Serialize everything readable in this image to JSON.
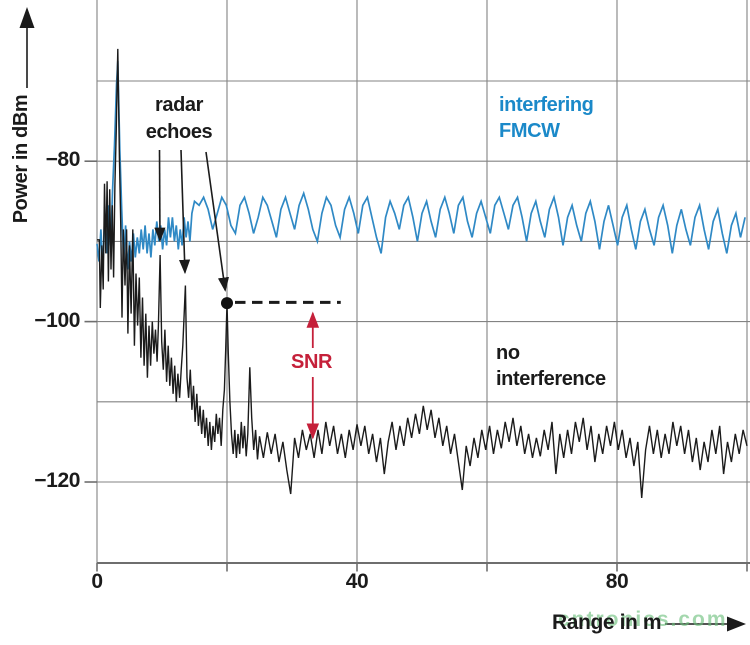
{
  "figure": {
    "watermark": "cntronics.com",
    "colors": {
      "blue_line": "#2f89c5",
      "blue_text": "#1b89c9",
      "red": "#c5203a",
      "grid": "#838383",
      "axis": "#6e6e6e",
      "black": "#1b1b1b",
      "watermark_green": "rgba(106,191,122,0.62)"
    }
  },
  "chart_data": {
    "type": "line",
    "title": "",
    "xlabel": "Range in m",
    "ylabel": "Power in dBm",
    "xlim": [
      0,
      100
    ],
    "ylim": [
      -130.1,
      -59.9
    ],
    "grid": true,
    "x_gridlines": [
      0,
      20,
      40,
      60,
      80,
      100
    ],
    "y_gridlines": [
      -70,
      -80,
      -90,
      -100,
      -110,
      -120
    ],
    "x_ticks": [
      {
        "v": 0,
        "label": "0"
      },
      {
        "v": 20,
        "label": ""
      },
      {
        "v": 40,
        "label": "40"
      },
      {
        "v": 60,
        "label": ""
      },
      {
        "v": 80,
        "label": "80"
      },
      {
        "v": 100,
        "label": ""
      }
    ],
    "y_ticks": [
      {
        "v": -80,
        "label": "−80"
      },
      {
        "v": -100,
        "label": "−100"
      },
      {
        "v": -120,
        "label": "−120"
      }
    ],
    "series": [
      {
        "name": "interfering FMCW",
        "color": "#2f89c5",
        "pairs": [
          [
            0,
            -90.3
          ],
          [
            0.3,
            -92.5
          ],
          [
            0.6,
            -88.5
          ],
          [
            0.9,
            -93.5
          ],
          [
            1.2,
            -86.5
          ],
          [
            1.5,
            -91.5
          ],
          [
            1.8,
            -85.5
          ],
          [
            2.1,
            -90.5
          ],
          [
            2.4,
            -83.5
          ],
          [
            2.7,
            -78.0
          ],
          [
            3.0,
            -70.5
          ],
          [
            3.2,
            -67.5
          ],
          [
            3.5,
            -78.5
          ],
          [
            3.8,
            -86.0
          ],
          [
            4.1,
            -92.5
          ],
          [
            4.4,
            -88.0
          ],
          [
            4.7,
            -93.5
          ],
          [
            5.0,
            -90.0
          ],
          [
            5.3,
            -92.5
          ],
          [
            5.6,
            -89.0
          ],
          [
            5.9,
            -92.0
          ],
          [
            6.2,
            -89.5
          ],
          [
            6.5,
            -91.5
          ],
          [
            6.8,
            -88.5
          ],
          [
            7.1,
            -91.0
          ],
          [
            7.4,
            -88.0
          ],
          [
            7.7,
            -91.5
          ],
          [
            8.0,
            -89.0
          ],
          [
            8.3,
            -92.0
          ],
          [
            8.6,
            -88.5
          ],
          [
            8.9,
            -90.5
          ],
          [
            9.2,
            -87.5
          ],
          [
            9.5,
            -90.0
          ],
          [
            9.8,
            -88.0
          ],
          [
            10.1,
            -91.0
          ],
          [
            10.4,
            -88.5
          ],
          [
            10.7,
            -90.5
          ],
          [
            11.0,
            -87.0
          ],
          [
            11.3,
            -89.5
          ],
          [
            11.6,
            -87.0
          ],
          [
            11.9,
            -90.0
          ],
          [
            12.2,
            -88.0
          ],
          [
            12.5,
            -91.0
          ],
          [
            12.8,
            -88.5
          ],
          [
            13.1,
            -90.5
          ],
          [
            13.4,
            -87.0
          ],
          [
            13.7,
            -89.5
          ],
          [
            14.0,
            -87.5
          ],
          [
            14.3,
            -90.0
          ],
          [
            14.6,
            -86.5
          ],
          [
            15.0,
            -85.0
          ]
        ],
        "tail": {
          "x_start": 15.7,
          "x_step": 0.7,
          "values": [
            -85.5,
            -84.5,
            -86.0,
            -88.5,
            -86.5,
            -84.5,
            -85.5,
            -88.0,
            -89.0,
            -85.5,
            -84.5,
            -86.5,
            -89.0,
            -87.0,
            -84.5,
            -85.5,
            -87.5,
            -89.5,
            -86.0,
            -84.5,
            -86.5,
            -88.5,
            -85.5,
            -84.0,
            -86.0,
            -88.5,
            -90.0,
            -86.5,
            -84.5,
            -85.5,
            -88.0,
            -89.5,
            -86.0,
            -84.5,
            -86.5,
            -89.0,
            -85.5,
            -84.5,
            -87.0,
            -89.5,
            -91.5,
            -87.0,
            -85.0,
            -86.5,
            -88.5,
            -85.5,
            -84.5,
            -87.0,
            -90.0,
            -86.5,
            -85.0,
            -87.5,
            -89.5,
            -86.0,
            -84.5,
            -86.5,
            -89.0,
            -85.5,
            -84.5,
            -87.5,
            -89.5,
            -86.5,
            -85.0,
            -87.0,
            -89.0,
            -85.5,
            -84.5,
            -86.5,
            -88.5,
            -85.5,
            -84.5,
            -87.0,
            -90.0,
            -86.5,
            -85.0,
            -87.5,
            -89.5,
            -86.0,
            -84.5,
            -87.0,
            -90.5,
            -87.0,
            -85.5,
            -88.0,
            -90.0,
            -86.5,
            -85.0,
            -87.5,
            -91.0,
            -87.5,
            -85.5,
            -88.0,
            -90.5,
            -87.0,
            -85.5,
            -88.5,
            -91.0,
            -87.5,
            -86.0,
            -88.5,
            -90.5,
            -87.0,
            -85.5,
            -88.0,
            -91.5,
            -88.0,
            -86.0,
            -88.5,
            -90.5,
            -87.0,
            -85.5,
            -88.5,
            -91.0,
            -87.5,
            -86.0,
            -89.0,
            -91.5,
            -88.0,
            -86.5,
            -89.5,
            -87.0
          ]
        }
      },
      {
        "name": "no interference",
        "color": "#1b1b1b",
        "pairs": [
          [
            0,
            -89.8
          ],
          [
            0.35,
            -89.8
          ],
          [
            0.5,
            -98.3
          ],
          [
            0.75,
            -90.5
          ],
          [
            0.95,
            -96.0
          ],
          [
            1.15,
            -82.8
          ],
          [
            1.35,
            -91.5
          ],
          [
            1.55,
            -82.5
          ],
          [
            1.75,
            -95.0
          ],
          [
            1.95,
            -83.5
          ],
          [
            2.15,
            -93.5
          ],
          [
            2.35,
            -85.5
          ],
          [
            2.55,
            -94.5
          ],
          [
            2.75,
            -83.0
          ],
          [
            2.95,
            -76.5
          ],
          [
            3.2,
            -66.0
          ],
          [
            3.45,
            -79.5
          ],
          [
            3.65,
            -87.5
          ],
          [
            3.85,
            -99.5
          ],
          [
            4.05,
            -88.5
          ],
          [
            4.3,
            -95.5
          ],
          [
            4.55,
            -88.5
          ],
          [
            4.75,
            -101.5
          ],
          [
            5.0,
            -90.5
          ],
          [
            5.25,
            -99.0
          ],
          [
            5.5,
            -88.5
          ],
          [
            5.75,
            -103.0
          ],
          [
            6.0,
            -94.0
          ],
          [
            6.25,
            -100.5
          ],
          [
            6.5,
            -94.5
          ],
          [
            6.75,
            -104.5
          ],
          [
            7.0,
            -97.0
          ],
          [
            7.25,
            -105.5
          ],
          [
            7.5,
            -99.0
          ],
          [
            7.75,
            -107.0
          ],
          [
            8.0,
            -100.5
          ],
          [
            8.25,
            -105.5
          ],
          [
            8.5,
            -100.0
          ],
          [
            8.75,
            -104.0
          ],
          [
            9.0,
            -101.0
          ],
          [
            9.25,
            -105.0
          ],
          [
            9.45,
            -100.5
          ],
          [
            9.7,
            -91.7
          ],
          [
            9.95,
            -102.5
          ],
          [
            10.2,
            -106.0
          ],
          [
            10.45,
            -101.0
          ],
          [
            10.7,
            -107.5
          ],
          [
            10.95,
            -103.0
          ],
          [
            11.2,
            -108.0
          ],
          [
            11.45,
            -104.5
          ],
          [
            11.7,
            -109.0
          ],
          [
            11.95,
            -105.5
          ],
          [
            12.2,
            -110.0
          ],
          [
            12.45,
            -106.5
          ],
          [
            12.7,
            -109.5
          ],
          [
            12.95,
            -106.0
          ],
          [
            13.2,
            -103.0
          ],
          [
            13.6,
            -95.5
          ],
          [
            13.85,
            -107.0
          ],
          [
            14.1,
            -109.5
          ],
          [
            14.35,
            -106.0
          ],
          [
            14.6,
            -111.0
          ],
          [
            14.85,
            -108.0
          ],
          [
            15.1,
            -112.5
          ],
          [
            15.35,
            -109.0
          ],
          [
            15.6,
            -113.0
          ],
          [
            15.85,
            -110.5
          ],
          [
            16.1,
            -114.0
          ],
          [
            16.35,
            -111.0
          ],
          [
            16.6,
            -114.5
          ],
          [
            16.85,
            -112.0
          ],
          [
            17.1,
            -115.5
          ],
          [
            17.35,
            -112.5
          ],
          [
            17.6,
            -116.0
          ],
          [
            17.85,
            -113.0
          ],
          [
            18.1,
            -115.0
          ],
          [
            18.35,
            -111.5
          ],
          [
            18.6,
            -114.0
          ],
          [
            18.85,
            -112.0
          ],
          [
            19.1,
            -115.5
          ],
          [
            19.35,
            -111.0
          ],
          [
            19.6,
            -108.5
          ],
          [
            19.8,
            -103.5
          ],
          [
            20.0,
            -97.7
          ],
          [
            20.2,
            -104.0
          ],
          [
            20.45,
            -110.0
          ],
          [
            20.7,
            -114.0
          ],
          [
            20.95,
            -116.5
          ],
          [
            21.2,
            -113.5
          ],
          [
            21.45,
            -117.0
          ],
          [
            21.7,
            -114.0
          ],
          [
            21.95,
            -116.5
          ],
          [
            22.2,
            -112.5
          ],
          [
            22.45,
            -115.8
          ],
          [
            22.7,
            -113.0
          ],
          [
            22.95,
            -116.8
          ],
          [
            23.2,
            -114.0
          ],
          [
            23.5,
            -105.7
          ],
          [
            23.8,
            -112.0
          ],
          [
            24.1,
            -116.0
          ],
          [
            24.4,
            -113.5
          ],
          [
            24.7,
            -117.2
          ]
        ],
        "tail": {
          "x_start": 25.0,
          "x_step": 0.6,
          "values": [
            -114.3,
            -117.0,
            -113.8,
            -116.5,
            -114.0,
            -117.5,
            -115.0,
            -118.5,
            -121.5,
            -114.5,
            -117.0,
            -113.5,
            -116.0,
            -114.0,
            -117.0,
            -113.5,
            -116.5,
            -112.5,
            -115.5,
            -113.0,
            -116.5,
            -114.0,
            -117.0,
            -113.5,
            -116.0,
            -112.8,
            -115.5,
            -113.0,
            -116.5,
            -114.0,
            -117.5,
            -114.5,
            -119.0,
            -115.0,
            -112.5,
            -116.0,
            -113.0,
            -115.5,
            -112.0,
            -114.5,
            -111.5,
            -114.0,
            -110.5,
            -113.5,
            -111.0,
            -114.5,
            -112.0,
            -115.5,
            -113.0,
            -116.5,
            -114.0,
            -117.5,
            -121.0,
            -115.5,
            -118.0,
            -114.5,
            -117.0,
            -113.5,
            -116.0,
            -113.0,
            -116.5,
            -113.5,
            -115.8,
            -112.5,
            -115.0,
            -112.0,
            -115.5,
            -113.0,
            -116.5,
            -114.0,
            -117.0,
            -114.5,
            -116.8,
            -113.5,
            -116.0,
            -112.5,
            -119.0,
            -114.0,
            -117.0,
            -113.5,
            -116.5,
            -112.5,
            -115.0,
            -112.0,
            -116.0,
            -113.0,
            -117.5,
            -114.0,
            -116.5,
            -113.0,
            -115.5,
            -112.5,
            -116.0,
            -113.5,
            -117.0,
            -114.5,
            -118.0,
            -115.0,
            -122.0,
            -116.0,
            -113.0,
            -116.5,
            -113.5,
            -117.0,
            -114.0,
            -116.5,
            -112.5,
            -115.5,
            -113.0,
            -116.5,
            -113.5,
            -117.5,
            -114.5,
            -118.5,
            -115.0,
            -117.5,
            -113.5,
            -116.5,
            -113.0,
            -119.0,
            -115.0,
            -117.5,
            -114.0,
            -116.5,
            -113.5,
            -115.5
          ]
        }
      }
    ],
    "annotations": {
      "radar_echoes": {
        "label_line1": "radar",
        "label_line2": "echoes",
        "targets": [
          {
            "m": 9.7,
            "dbm": -91.5
          },
          {
            "m": 13.6,
            "dbm": -95.5
          },
          {
            "m": 20.0,
            "dbm": -97.7
          }
        ]
      },
      "peak_marker": {
        "m": 20.0,
        "dbm": -97.7
      },
      "dashed_level": {
        "dbm": -97.6,
        "from_m": 21.3,
        "to_m": 37.5
      },
      "snr": {
        "label": "SNR",
        "m": 33.2,
        "from_dbm": -98.8,
        "to_dbm": -115.6
      },
      "interfering_line1": "interfering",
      "interfering_line2": "FMCW",
      "no_interference_line1": "no",
      "no_interference_line2": "interference"
    }
  }
}
